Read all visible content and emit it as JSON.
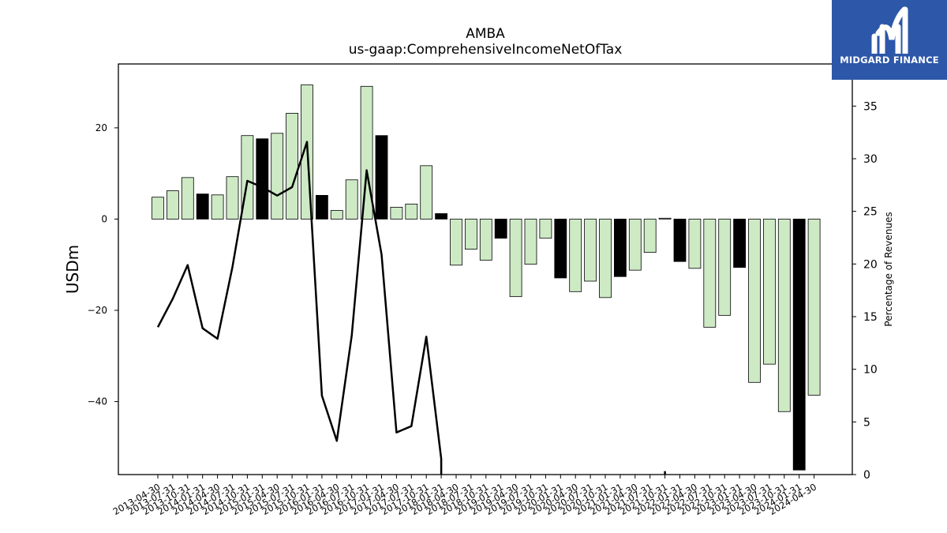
{
  "chart_data": {
    "type": "bar",
    "title": "AMBA",
    "subtitle": "us-gaap:ComprehensiveIncomeNetOfTax",
    "ylabel": "USDm",
    "y2label": "Percentage of Revenues",
    "ylim": [
      -56,
      34
    ],
    "y2lim": [
      0,
      39
    ],
    "yticks": [
      -40,
      -20,
      0,
      20
    ],
    "y2ticks": [
      0,
      5,
      10,
      15,
      20,
      25,
      30,
      35
    ],
    "ytick_labels": [
      "−40",
      "−20",
      "0",
      "20"
    ],
    "grid": false,
    "categories": [
      "2013-04-30",
      "2013-07-31",
      "2013-10-31",
      "2014-01-31",
      "2014-04-30",
      "2014-07-31",
      "2014-10-31",
      "2015-01-31",
      "2015-04-30",
      "2015-07-31",
      "2015-10-31",
      "2016-01-31",
      "2016-04-30",
      "2016-07-31",
      "2016-10-31",
      "2017-01-31",
      "2017-04-30",
      "2017-07-31",
      "2017-10-31",
      "2018-01-31",
      "2018-04-30",
      "2018-07-31",
      "2018-10-31",
      "2019-01-31",
      "2019-04-30",
      "2019-07-31",
      "2019-10-31",
      "2020-01-31",
      "2020-04-30",
      "2020-07-31",
      "2020-10-31",
      "2021-01-31",
      "2021-04-30",
      "2021-07-31",
      "2021-10-31",
      "2022-01-31",
      "2022-04-30",
      "2022-07-31",
      "2022-10-31",
      "2023-01-31",
      "2023-04-30",
      "2023-07-31",
      "2023-10-31",
      "2024-01-31",
      "2024-04-30"
    ],
    "series": [
      {
        "kind": "bar",
        "values": [
          4.8,
          6.2,
          9.1,
          5.5,
          5.3,
          9.3,
          18.3,
          17.6,
          18.8,
          23.2,
          29.4,
          5.2,
          1.9,
          8.6,
          29.1,
          18.3,
          2.6,
          3.3,
          11.7,
          1.2,
          -10.1,
          -6.6,
          -9.0,
          -4.2,
          -17.0,
          -9.9,
          -4.2,
          -12.9,
          -15.9,
          -13.6,
          -17.2,
          -12.6,
          -11.2,
          -7.3,
          0.2,
          -9.3,
          -10.8,
          -23.7,
          -21.1,
          -10.6,
          -35.8,
          -31.8,
          -42.2,
          -55.0,
          -38.6
        ],
        "highlight": [
          false,
          false,
          false,
          true,
          false,
          false,
          false,
          true,
          false,
          false,
          false,
          true,
          false,
          false,
          false,
          true,
          false,
          false,
          false,
          true,
          false,
          false,
          false,
          true,
          false,
          false,
          false,
          true,
          false,
          false,
          false,
          true,
          false,
          false,
          false,
          true,
          false,
          false,
          false,
          true,
          false,
          false,
          false,
          true,
          false
        ],
        "colors": {
          "normal": "#cdeac5",
          "highlight": "#000000",
          "edge": "#000000"
        }
      },
      {
        "kind": "line",
        "axis": "right",
        "color": "#000000",
        "values": [
          14.0,
          16.7,
          19.9,
          13.9,
          12.9,
          19.7,
          27.9,
          27.3,
          26.5,
          27.3,
          31.6,
          7.5,
          3.2,
          13.2,
          28.9,
          20.9,
          4.0,
          4.6,
          13.1,
          1.5,
          null,
          null,
          null,
          null,
          null,
          null,
          null,
          null,
          null,
          null,
          null,
          null,
          null,
          null,
          0.1,
          null,
          null,
          null,
          null,
          null,
          null,
          null,
          null,
          null,
          null
        ]
      }
    ]
  },
  "logo": {
    "text": "MIDGARD FINANCE"
  }
}
